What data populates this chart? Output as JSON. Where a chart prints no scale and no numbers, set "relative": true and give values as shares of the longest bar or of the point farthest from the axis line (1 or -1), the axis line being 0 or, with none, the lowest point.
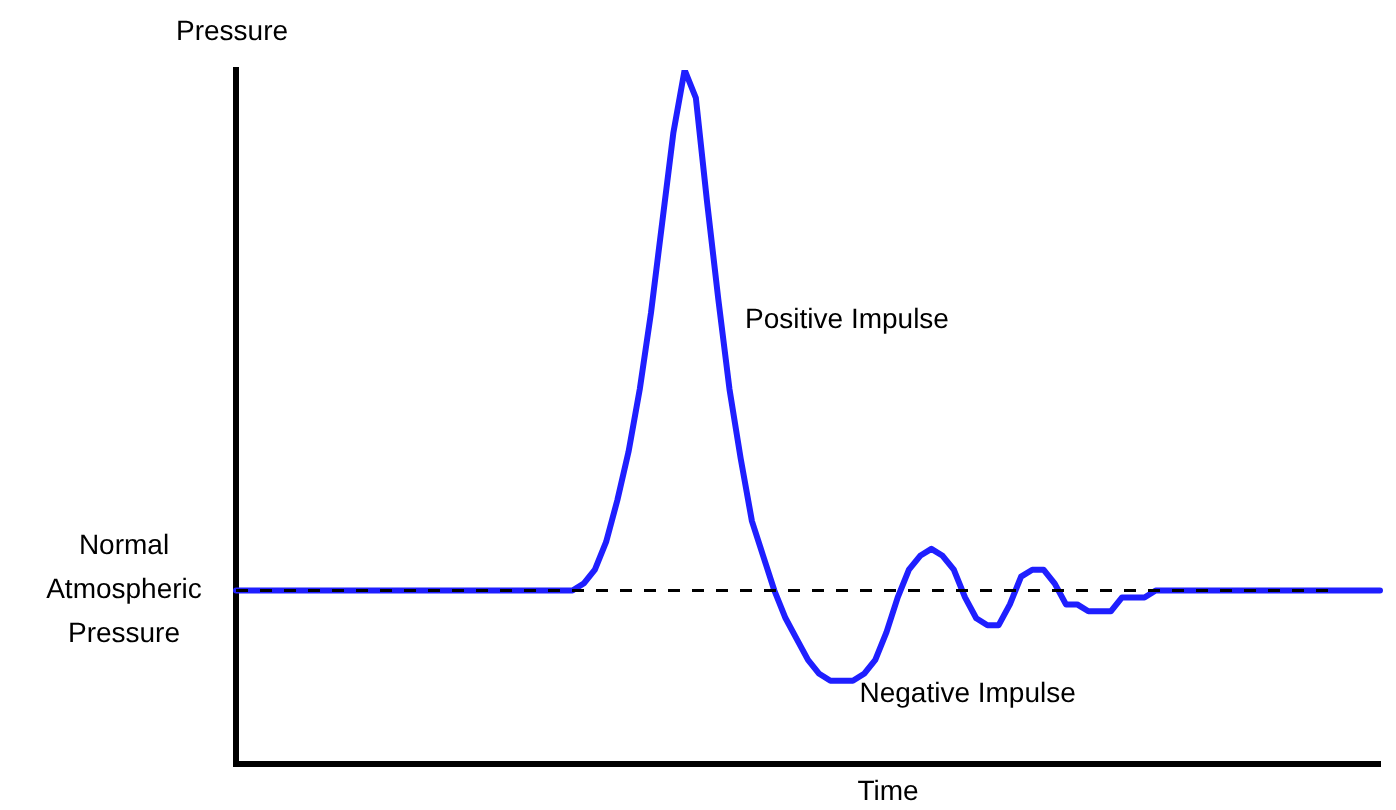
{
  "chart_data": {
    "type": "line",
    "relative": true,
    "xlabel": "Time",
    "ylabel": "Pressure",
    "marker": "none",
    "line_style": "solid",
    "grid": false,
    "categories": [
      null,
      null,
      null,
      null,
      null,
      null,
      null,
      null,
      null,
      null,
      null,
      null,
      null,
      null,
      null,
      null,
      null,
      null,
      null,
      null,
      null,
      null,
      null,
      null,
      null,
      null,
      null,
      null,
      null,
      null,
      null,
      null,
      null,
      null,
      null,
      null,
      null,
      null,
      null,
      null,
      null,
      null,
      null,
      null,
      null,
      null,
      null,
      null,
      null,
      null,
      null,
      null,
      null,
      null,
      null,
      null,
      null,
      null,
      null,
      null,
      null,
      null,
      null,
      null,
      null,
      null,
      null,
      null,
      null,
      null,
      null,
      null,
      null,
      null,
      null,
      null,
      null,
      null,
      null,
      null,
      null,
      null,
      null,
      null,
      null,
      null,
      null,
      null,
      null,
      null,
      null,
      null,
      null,
      null,
      null,
      null,
      null,
      null,
      null,
      null,
      null,
      null,
      null
    ],
    "series": [
      {
        "color": "#1f1fff",
        "values": [
          0.25,
          0.25,
          0.25,
          0.25,
          0.25,
          0.25,
          0.25,
          0.25,
          0.25,
          0.25,
          0.25,
          0.25,
          0.25,
          0.25,
          0.25,
          0.25,
          0.25,
          0.25,
          0.25,
          0.25,
          0.25,
          0.25,
          0.25,
          0.25,
          0.25,
          0.25,
          0.25,
          0.25,
          0.25,
          0.25,
          0.25,
          0.26,
          0.28,
          0.32,
          0.38,
          0.45,
          0.54,
          0.65,
          0.78,
          0.91,
          1,
          0.96,
          0.81,
          0.67,
          0.54,
          0.44,
          0.35,
          0.3,
          0.25,
          0.21,
          0.18,
          0.15,
          0.13,
          0.12,
          0.12,
          0.12,
          0.13,
          0.15,
          0.19,
          0.24,
          0.28,
          0.3,
          0.31,
          0.3,
          0.28,
          0.24,
          0.21,
          0.2,
          0.2,
          0.23,
          0.27,
          0.28,
          0.28,
          0.26,
          0.23,
          0.23,
          0.22,
          0.22,
          0.22,
          0.24,
          0.24,
          0.24,
          0.25,
          0.25,
          0.25,
          0.25,
          0.25,
          0.25,
          0.25,
          0.25,
          0.25,
          0.25,
          0.25,
          0.25,
          0.25,
          0.25,
          0.25,
          0.25,
          0.25,
          0.25,
          0.25,
          0.25,
          0.25
        ]
      }
    ],
    "ref_lines": [
      {
        "axis": "y",
        "value": 0.25,
        "label": "Normal Atmospheric Pressure",
        "color": "#000000",
        "line_style": "dashed"
      }
    ],
    "annotations": [
      "Positive Impulse",
      "Negative Impulse"
    ]
  }
}
